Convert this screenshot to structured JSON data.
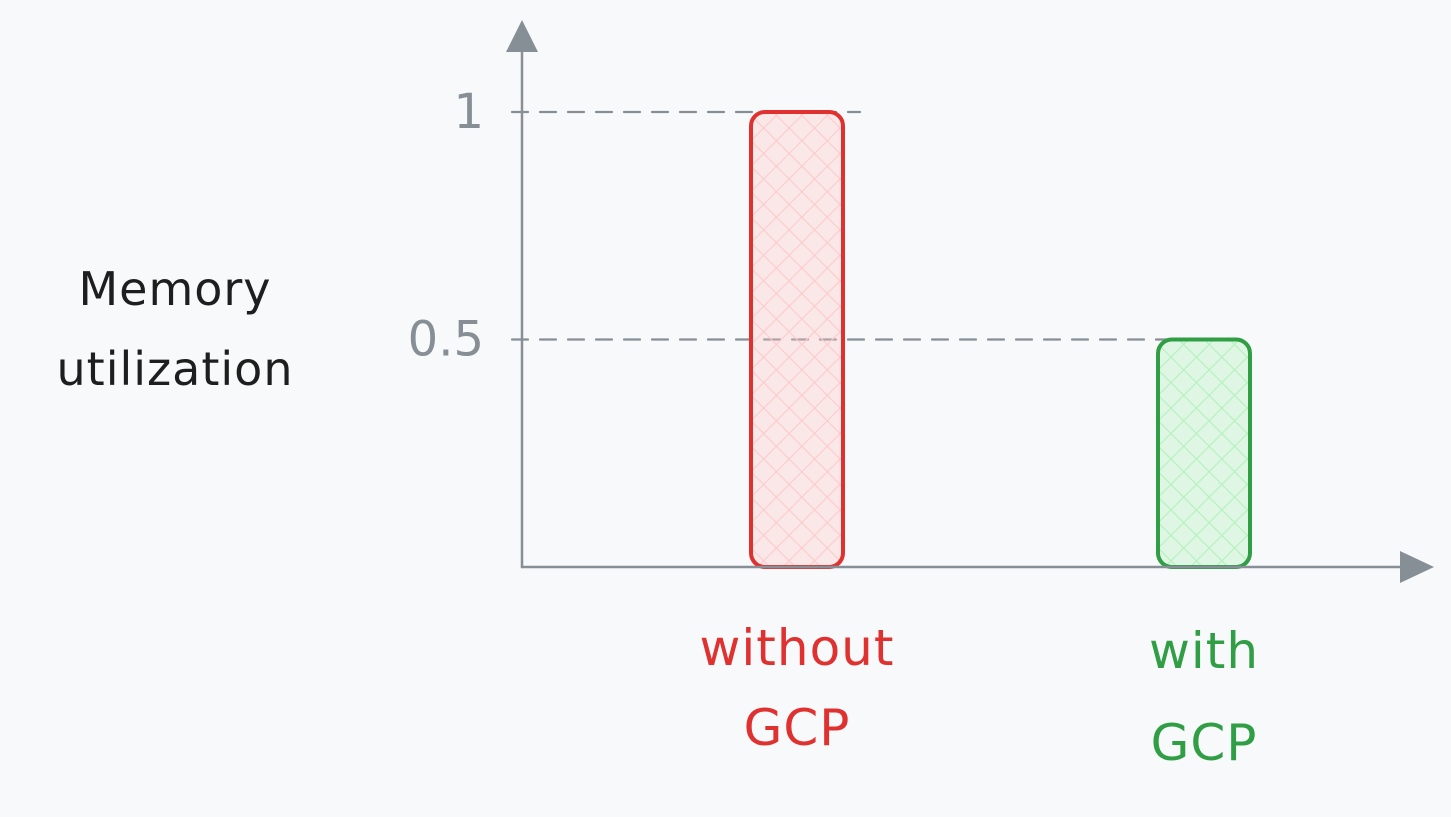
{
  "chart_data": {
    "type": "bar",
    "title": "",
    "xlabel": "",
    "ylabel": [
      "Memory",
      "utilization"
    ],
    "ylim": [
      0,
      1.2
    ],
    "yticks": [
      {
        "value": 1,
        "label": "1"
      },
      {
        "value": 0.5,
        "label": "0.5"
      }
    ],
    "categories": [
      [
        "without",
        "GCP"
      ],
      [
        "with",
        "GCP"
      ]
    ],
    "values": [
      1,
      0.5
    ],
    "colors": {
      "stroke": [
        "#e03131",
        "#2f9e44"
      ],
      "fill": [
        "#ffc9c9",
        "#b2f2bb"
      ],
      "axis": "#868e96",
      "text": "#1e1e1e"
    },
    "grid": false,
    "reference_lines": [
      1,
      0.5
    ]
  }
}
